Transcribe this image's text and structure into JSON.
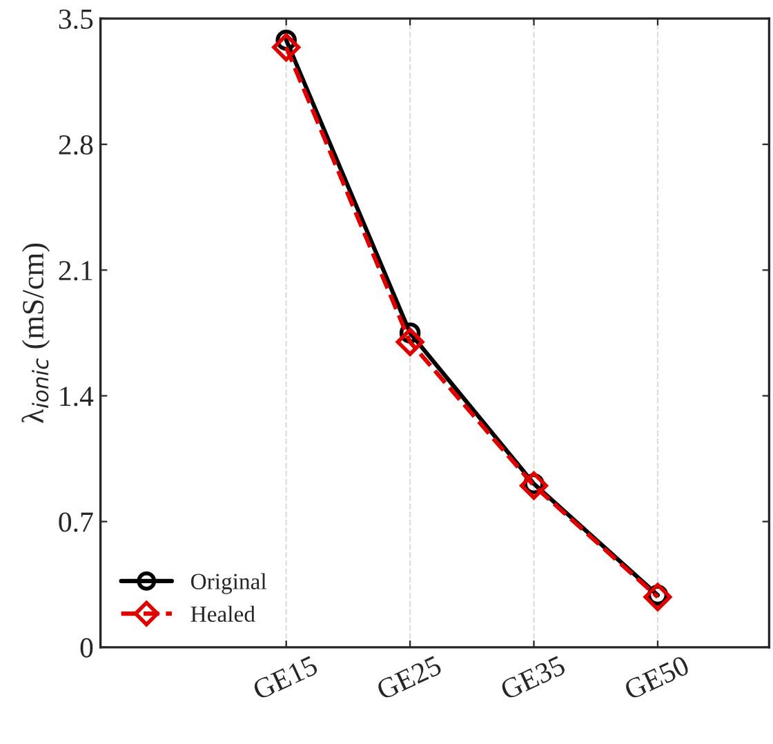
{
  "chart_data": {
    "type": "line",
    "ylabel": "λ$_{ionic}$ (mS/cm)",
    "categories": [
      "GE15",
      "GE25",
      "GE35",
      "GE50"
    ],
    "series": [
      {
        "name": "Original",
        "color": "#000000",
        "values": [
          3.38,
          1.75,
          0.91,
          0.29
        ],
        "marker": "circle",
        "line_style": "solid"
      },
      {
        "name": "Healed",
        "color": "#e00000",
        "values": [
          3.34,
          1.7,
          0.9,
          0.28
        ],
        "marker": "diamond",
        "line_style": "dashed"
      }
    ],
    "ylim": [
      0,
      3.5
    ],
    "yticks": [
      0,
      0.7,
      1.4,
      2.1,
      2.8,
      3.5
    ],
    "grid": "x",
    "legend": "bottom left"
  }
}
